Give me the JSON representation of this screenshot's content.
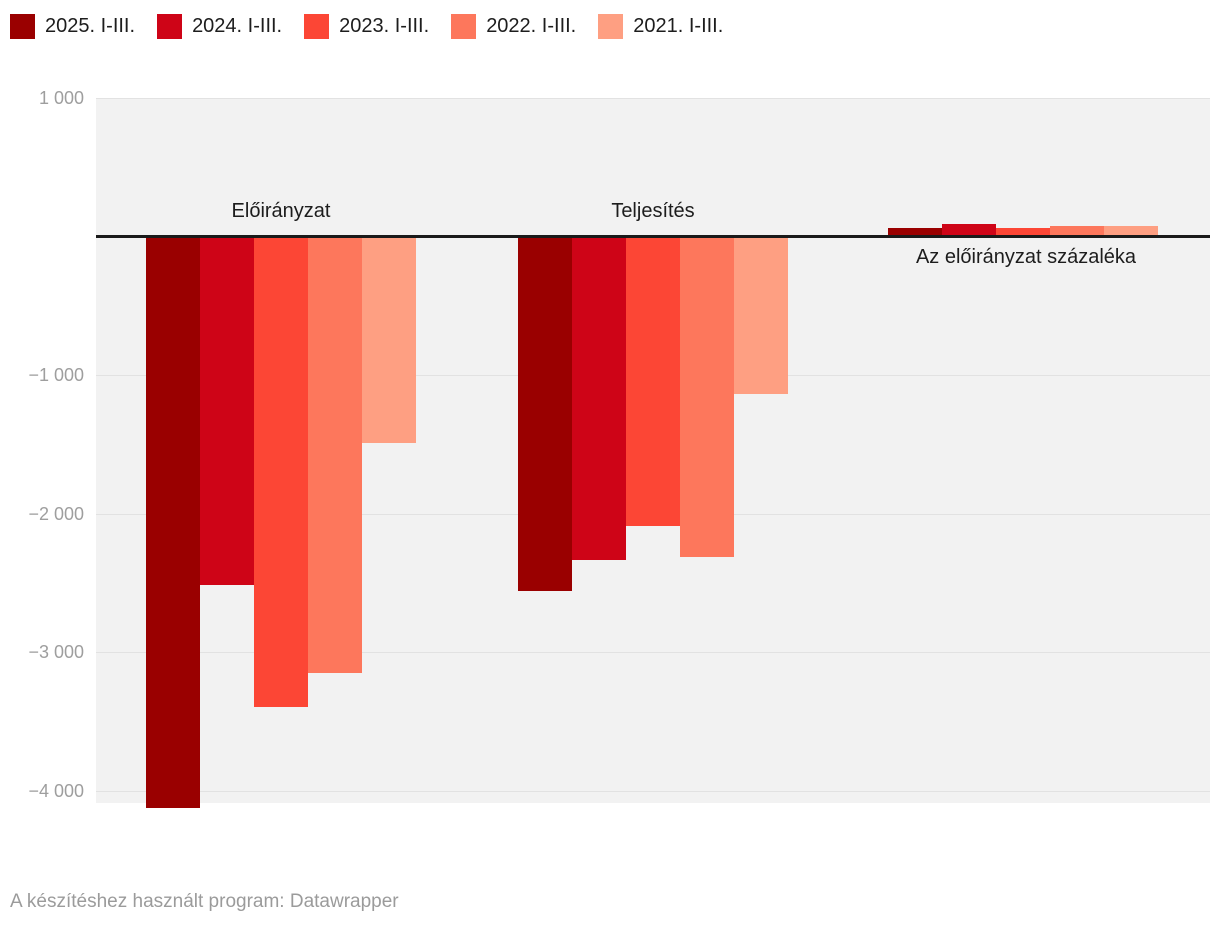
{
  "chart_data": {
    "type": "bar",
    "title": "",
    "unit_note": "",
    "groups": [
      "Előirányzat",
      "Teljesítés",
      "Az előirányzat százaléka"
    ],
    "series": [
      {
        "name": "2025. I-III.",
        "color": "#9a0000",
        "values": [
          -4124,
          -2562,
          62.1
        ]
      },
      {
        "name": "2024. I-III.",
        "color": "#ce0417",
        "values": [
          -2514,
          -2336,
          92.9
        ]
      },
      {
        "name": "2023. I-III.",
        "color": "#fc4635",
        "values": [
          -3400,
          -2091,
          61.5
        ]
      },
      {
        "name": "2022. I-III.",
        "color": "#fd775c",
        "values": [
          -3153,
          -2317,
          73.5
        ]
      },
      {
        "name": "2021. I-III.",
        "color": "#fe9f82",
        "values": [
          -1489,
          -1139,
          76.5
        ]
      }
    ],
    "y_axis": {
      "ticks": [
        "1 000",
        "−1 000",
        "−2 000",
        "−3 000",
        "−4 000"
      ],
      "tick_values": [
        1000,
        -1000,
        -2000,
        -3000,
        -4000
      ],
      "ylim": [
        -4090,
        1000
      ],
      "gridlines": true,
      "zero_baseline": true
    },
    "legend_position": "top-left",
    "colors": {
      "plot_background": "#f2f2f2",
      "gridline": "#e2e2e2",
      "zero_line": "#1a1a1a",
      "tick_text": "#9e9e9e",
      "label_text": "#1d1d1d"
    }
  },
  "footer": {
    "credit": "A készítéshez használt program: Datawrapper"
  }
}
